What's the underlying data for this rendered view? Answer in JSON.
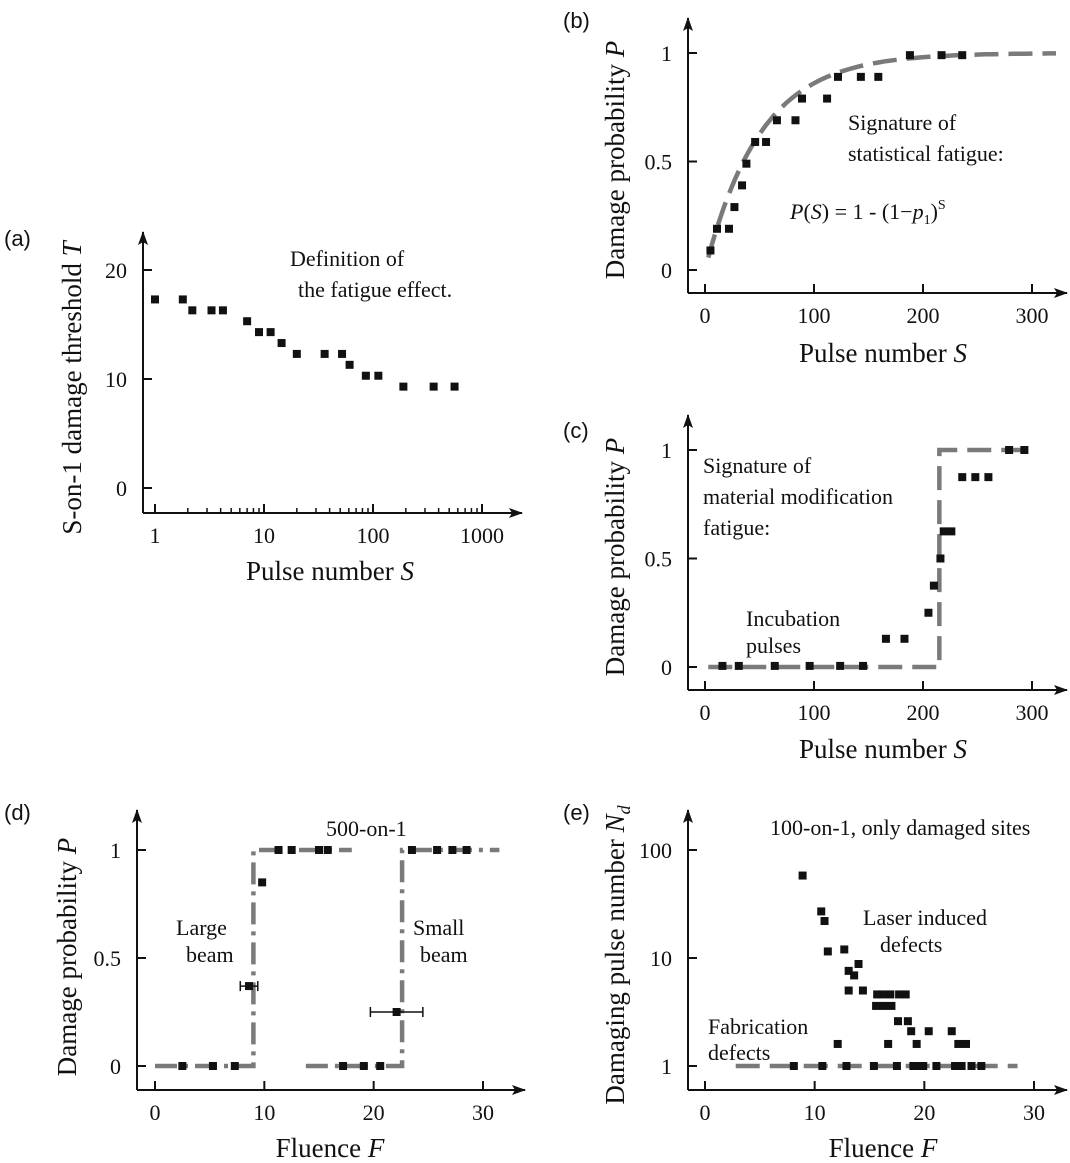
{
  "chart_data": [
    {
      "panel": "(a)",
      "type": "scatter",
      "xlabel": "Pulse number",
      "xlabel_var": "S",
      "ylabel": "S-on-1 damage threshold",
      "ylabel_var": "T",
      "x_scale": "log",
      "xlim": [
        1,
        1000
      ],
      "ylim": [
        0,
        20
      ],
      "xticks": [
        1,
        10,
        100,
        1000
      ],
      "xtick_labels": [
        "1",
        "10",
        "100",
        "1000"
      ],
      "yticks": [
        0,
        10,
        20
      ],
      "ytick_labels": [
        "0",
        "10",
        "20"
      ],
      "annotations": [
        "Definition of",
        "the fatigue effect."
      ],
      "series": [
        {
          "points": [
            [
              1,
              17.3
            ],
            [
              1.8,
              17.3
            ],
            [
              2.2,
              16.3
            ],
            [
              3.3,
              16.3
            ],
            [
              4.2,
              16.3
            ],
            [
              7,
              15.3
            ],
            [
              9,
              14.3
            ],
            [
              11.5,
              14.3
            ],
            [
              14.5,
              13.3
            ],
            [
              20,
              12.3
            ],
            [
              36,
              12.3
            ],
            [
              52,
              12.3
            ],
            [
              61,
              11.3
            ],
            [
              86,
              10.3
            ],
            [
              112,
              10.3
            ],
            [
              190,
              9.3
            ],
            [
              360,
              9.3
            ],
            [
              560,
              9.3
            ]
          ]
        }
      ]
    },
    {
      "panel": "(b)",
      "type": "scatter",
      "xlabel": "Pulse number",
      "xlabel_var": "S",
      "ylabel": "Damage probability",
      "ylabel_var": "P",
      "xlim": [
        0,
        320
      ],
      "ylim": [
        0,
        1
      ],
      "xticks": [
        0,
        100,
        200,
        300
      ],
      "xtick_labels": [
        "0",
        "100",
        "200",
        "300"
      ],
      "yticks": [
        0,
        0.5,
        1
      ],
      "ytick_labels": [
        "0",
        "0.5",
        "1"
      ],
      "annotations": [
        "Signature of",
        "statistical fatigue:"
      ],
      "formula": "P(S) = 1 - (1−p₁)ˢ",
      "series": [
        {
          "points": [
            [
              5,
              0.09
            ],
            [
              11,
              0.19
            ],
            [
              22,
              0.19
            ],
            [
              27,
              0.29
            ],
            [
              34,
              0.39
            ],
            [
              38,
              0.49
            ],
            [
              46,
              0.59
            ],
            [
              56,
              0.59
            ],
            [
              66,
              0.69
            ],
            [
              83,
              0.69
            ],
            [
              89,
              0.79
            ],
            [
              112,
              0.79
            ],
            [
              122,
              0.89
            ],
            [
              143,
              0.89
            ],
            [
              159,
              0.89
            ],
            [
              188,
              0.99
            ],
            [
              217,
              0.99
            ],
            [
              236,
              0.99
            ]
          ]
        }
      ],
      "fit": {
        "style": "dashed",
        "formula": "P(S) = 1 - (1-p1)^S",
        "p1": 0.0195,
        "x_range": [
          3,
          322
        ]
      }
    },
    {
      "panel": "(c)",
      "type": "scatter",
      "xlabel": "Pulse number",
      "xlabel_var": "S",
      "ylabel": "Damage probability",
      "ylabel_var": "P",
      "xlim": [
        0,
        320
      ],
      "ylim": [
        0,
        1
      ],
      "xticks": [
        0,
        100,
        200,
        300
      ],
      "xtick_labels": [
        "0",
        "100",
        "200",
        "300"
      ],
      "yticks": [
        0,
        0.5,
        1
      ],
      "ytick_labels": [
        "0",
        "0.5",
        "1"
      ],
      "annotations": [
        "Signature of",
        "material modification",
        "fatigue:",
        "Incubation",
        "pulses"
      ],
      "series": [
        {
          "points": [
            [
              16,
              0.005
            ],
            [
              31,
              0.005
            ],
            [
              64,
              0.005
            ],
            [
              96,
              0.005
            ],
            [
              124,
              0.005
            ],
            [
              145,
              0.005
            ],
            [
              166,
              0.13
            ],
            [
              183,
              0.13
            ],
            [
              205,
              0.25
            ],
            [
              210,
              0.375
            ],
            [
              216,
              0.5
            ],
            [
              219,
              0.625
            ],
            [
              226,
              0.625
            ],
            [
              236,
              0.875
            ],
            [
              248,
              0.875
            ],
            [
              260,
              0.875
            ],
            [
              279,
              1.0
            ],
            [
              293,
              1.0
            ]
          ]
        }
      ],
      "fit": {
        "style": "dashed",
        "shape": "step",
        "x_step": 215,
        "x_range": [
          3,
          297
        ]
      }
    },
    {
      "panel": "(d)",
      "type": "scatter",
      "xlabel": "Fluence",
      "xlabel_var": "F",
      "ylabel": "Damage probability",
      "ylabel_var": "P",
      "xlim": [
        0,
        32
      ],
      "ylim": [
        0,
        1
      ],
      "xticks": [
        0,
        10,
        20,
        30
      ],
      "xtick_labels": [
        "0",
        "10",
        "20",
        "30"
      ],
      "yticks": [
        0,
        0.5,
        1
      ],
      "ytick_labels": [
        "0",
        "0.5",
        "1"
      ],
      "annotations": [
        "500-on-1",
        "Large",
        "beam",
        "Small",
        "beam"
      ],
      "series": [
        {
          "points": [
            [
              2.5,
              0.0
            ],
            [
              5.3,
              0.0
            ],
            [
              7.3,
              0.0
            ],
            [
              8.6,
              0.37
            ],
            [
              9.8,
              0.85
            ],
            [
              11.3,
              1.0
            ],
            [
              12.5,
              1.0
            ],
            [
              15.0,
              1.0
            ],
            [
              15.8,
              1.0
            ]
          ],
          "error_bars": [
            {
              "x": 8.6,
              "y": 0.37,
              "xerr": 0.8
            }
          ]
        },
        {
          "points": [
            [
              17.2,
              0.0
            ],
            [
              19.1,
              0.0
            ],
            [
              20.6,
              0.0
            ],
            [
              22.1,
              0.25
            ],
            [
              23.5,
              1.0
            ],
            [
              25.8,
              1.0
            ],
            [
              27.2,
              1.0
            ],
            [
              28.5,
              1.0
            ]
          ],
          "error_bars": [
            {
              "x": 22.1,
              "y": 0.25,
              "xerr": 2.4
            }
          ]
        }
      ],
      "fits": [
        {
          "style": "dash-dot",
          "shape": "step",
          "x_step": 9.0,
          "x_range": [
            0,
            18
          ]
        },
        {
          "style": "dash-dot",
          "shape": "step",
          "x_step": 22.6,
          "x_range": [
            13.8,
            31.5
          ]
        }
      ]
    },
    {
      "panel": "(e)",
      "type": "scatter",
      "xlabel": "Fluence",
      "xlabel_var": "F",
      "ylabel": "Damaging pulse number",
      "ylabel_var": "N",
      "ylabel_sub": "d",
      "y_scale": "log",
      "xlim": [
        0,
        32
      ],
      "ylim": [
        1,
        100
      ],
      "xticks": [
        0,
        10,
        20,
        30
      ],
      "xtick_labels": [
        "0",
        "10",
        "20",
        "30"
      ],
      "yticks": [
        1,
        10,
        100
      ],
      "ytick_labels": [
        "1",
        "10",
        "100"
      ],
      "annotations": [
        "100-on-1, only damaged sites",
        "Laser induced",
        "defects",
        "Fabrication",
        "defects"
      ],
      "series": [
        {
          "points": [
            [
              8.9,
              58
            ],
            [
              10.6,
              27
            ],
            [
              10.9,
              22
            ],
            [
              11.2,
              11.5
            ],
            [
              12.7,
              12
            ],
            [
              13.1,
              7.6
            ],
            [
              13.6,
              6.9
            ],
            [
              14.0,
              8.8
            ],
            [
              13.1,
              5.0
            ],
            [
              14.4,
              5.0
            ],
            [
              15.7,
              4.6
            ],
            [
              16.2,
              4.6
            ],
            [
              16.9,
              4.6
            ],
            [
              17.7,
              4.6
            ],
            [
              18.3,
              4.6
            ],
            [
              15.6,
              3.6
            ],
            [
              16.3,
              3.6
            ],
            [
              17.0,
              3.6
            ],
            [
              17.6,
              2.6
            ],
            [
              18.5,
              2.6
            ],
            [
              18.8,
              2.1
            ],
            [
              20.4,
              2.1
            ],
            [
              22.5,
              2.1
            ],
            [
              19.3,
              1.6
            ],
            [
              23.1,
              1.6
            ],
            [
              23.8,
              1.6
            ],
            [
              12.1,
              1.6
            ],
            [
              16.7,
              1.6
            ],
            [
              8.1,
              1.0
            ],
            [
              10.7,
              1.0
            ],
            [
              12.9,
              1.0
            ],
            [
              15.4,
              1.0
            ],
            [
              17.5,
              1.0
            ],
            [
              19.0,
              1.0
            ],
            [
              19.5,
              1.0
            ],
            [
              19.9,
              1.0
            ],
            [
              21.1,
              1.0
            ],
            [
              22.8,
              1.0
            ],
            [
              23.4,
              1.0
            ],
            [
              24.3,
              1.0
            ],
            [
              25.2,
              1.0
            ]
          ]
        }
      ],
      "fit": {
        "style": "dashed",
        "shape": "constant",
        "y": 1,
        "x_range": [
          2.8,
          28.5
        ]
      }
    }
  ]
}
